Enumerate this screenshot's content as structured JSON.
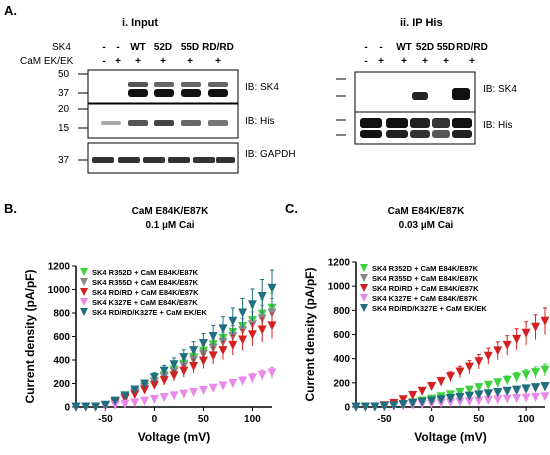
{
  "panel_a": {
    "label": "A.",
    "input": {
      "heading": "i.  Input",
      "row1_label": "SK4",
      "row2_label": "CaM EK/EK",
      "row1_values": [
        "-",
        "-",
        "WT",
        "52D",
        "55D",
        "RD/RD"
      ],
      "row2_values": [
        "-",
        "+",
        "+",
        "+",
        "+",
        "+"
      ],
      "blots": [
        {
          "ib": "IB: SK4",
          "markers": [
            "50",
            "37"
          ]
        },
        {
          "ib": "IB: His",
          "markers": [
            "20",
            "15"
          ]
        },
        {
          "ib": "IB: GAPDH",
          "markers": [
            "37"
          ]
        }
      ]
    },
    "ip": {
      "heading": "ii.  IP His",
      "row1_values": [
        "-",
        "-",
        "WT",
        "52D",
        "55D",
        "RD/RD"
      ],
      "row2_values": [
        "-",
        "+",
        "+",
        "+",
        "+",
        "+"
      ],
      "blots": [
        {
          "ib": "IB: SK4"
        },
        {
          "ib": "IB: His"
        }
      ]
    }
  },
  "chart_data": [
    {
      "type": "line",
      "panel": "B.",
      "title": "CaM E84K/E87K",
      "subtitle": "0.1 µM Cai",
      "xlabel": "Voltage (mV)",
      "ylabel": "Current density (pA/pF)",
      "xlim": [
        -80,
        120
      ],
      "ylim": [
        0,
        1200
      ],
      "xticks": [
        "-50",
        "0",
        "50",
        "100"
      ],
      "yticks": [
        "0",
        "200",
        "400",
        "600",
        "800",
        "1000",
        "1200"
      ],
      "legend_position": "top-left",
      "series": [
        {
          "name": "SK4 R352D + CaM E84K/E87K",
          "color": "#3fd23f",
          "marker": "triangle-down",
          "x": [
            -80,
            -70,
            -60,
            -50,
            -40,
            -30,
            -20,
            -10,
            0,
            10,
            20,
            30,
            40,
            50,
            60,
            70,
            80,
            90,
            100,
            110,
            120
          ],
          "y": [
            0,
            0,
            0,
            10,
            40,
            80,
            125,
            170,
            215,
            265,
            315,
            365,
            420,
            475,
            530,
            585,
            635,
            685,
            735,
            790,
            840
          ]
        },
        {
          "name": "SK4 R355D + CaM E84K/E87K",
          "color": "#8a8a8a",
          "marker": "triangle-down",
          "x": [
            -80,
            -70,
            -60,
            -50,
            -40,
            -30,
            -20,
            -10,
            0,
            10,
            20,
            30,
            40,
            50,
            60,
            70,
            80,
            90,
            100,
            110,
            120
          ],
          "y": [
            0,
            0,
            0,
            10,
            40,
            80,
            120,
            165,
            210,
            255,
            300,
            350,
            400,
            450,
            500,
            550,
            600,
            650,
            700,
            750,
            800
          ]
        },
        {
          "name": "SK4 RD/RD + CaM E84K/E87K",
          "color": "#d42020",
          "marker": "triangle-down",
          "x": [
            -80,
            -70,
            -60,
            -50,
            -40,
            -30,
            -20,
            -10,
            0,
            10,
            20,
            30,
            40,
            50,
            60,
            70,
            80,
            90,
            100,
            110,
            120
          ],
          "y": [
            0,
            0,
            0,
            10,
            35,
            70,
            105,
            145,
            185,
            225,
            265,
            305,
            345,
            390,
            435,
            480,
            525,
            570,
            615,
            655,
            690
          ]
        },
        {
          "name": "SK4 K327E + CaM E84K/E87K",
          "color": "#e88ae8",
          "marker": "triangle-down",
          "x": [
            -80,
            -70,
            -60,
            -50,
            -40,
            -30,
            -20,
            -10,
            0,
            10,
            20,
            30,
            40,
            50,
            60,
            70,
            80,
            90,
            100,
            110,
            120
          ],
          "y": [
            0,
            0,
            0,
            5,
            15,
            25,
            35,
            50,
            65,
            80,
            95,
            110,
            125,
            140,
            160,
            180,
            200,
            220,
            245,
            270,
            290
          ]
        },
        {
          "name": "SK4 RD/RD/K327E + CaM EK/EK",
          "color": "#1f6f80",
          "marker": "triangle-down",
          "x": [
            -80,
            -70,
            -60,
            -50,
            -40,
            -30,
            -20,
            -10,
            0,
            10,
            20,
            30,
            40,
            50,
            60,
            70,
            80,
            90,
            100,
            110,
            120
          ],
          "y": [
            0,
            0,
            0,
            15,
            50,
            95,
            145,
            195,
            250,
            305,
            360,
            420,
            480,
            540,
            600,
            665,
            730,
            800,
            870,
            940,
            1010
          ]
        }
      ]
    },
    {
      "type": "line",
      "panel": "C.",
      "title": "CaM E84K/E87K",
      "subtitle": "0.03 µM Cai",
      "xlabel": "Voltage (mV)",
      "ylabel": "Current density (pA/pF)",
      "xlim": [
        -80,
        120
      ],
      "ylim": [
        0,
        1200
      ],
      "xticks": [
        "-50",
        "0",
        "50",
        "100"
      ],
      "yticks": [
        "0",
        "200",
        "400",
        "600",
        "800",
        "1000",
        "1200"
      ],
      "legend_position": "top-left",
      "series": [
        {
          "name": "SK4 R352D + CaM E84K/E87K",
          "color": "#3fd23f",
          "marker": "triangle-down",
          "x": [
            -80,
            -70,
            -60,
            -50,
            -40,
            -30,
            -20,
            -10,
            0,
            10,
            20,
            30,
            40,
            50,
            60,
            70,
            80,
            90,
            100,
            110,
            120
          ],
          "y": [
            0,
            0,
            0,
            5,
            10,
            20,
            35,
            50,
            65,
            85,
            100,
            120,
            140,
            160,
            180,
            200,
            220,
            245,
            265,
            285,
            305
          ]
        },
        {
          "name": "SK4 R355D + CaM E84K/E87K",
          "color": "#8a8a8a",
          "marker": "triangle-down",
          "x": [
            -80,
            -70,
            -60,
            -50,
            -40,
            -30,
            -20,
            -10,
            0,
            10,
            20,
            30,
            40,
            50,
            60,
            70,
            80,
            90,
            100,
            110,
            120
          ],
          "y": [
            0,
            0,
            0,
            5,
            10,
            15,
            25,
            35,
            45,
            55,
            65,
            75,
            85,
            95,
            105,
            115,
            125,
            135,
            145,
            155,
            165
          ]
        },
        {
          "name": "SK4 RD/RD + CaM E84K/E87K",
          "color": "#d42020",
          "marker": "triangle-down",
          "x": [
            -80,
            -70,
            -60,
            -50,
            -40,
            -30,
            -20,
            -10,
            0,
            10,
            20,
            30,
            40,
            50,
            60,
            70,
            80,
            90,
            100,
            110,
            120
          ],
          "y": [
            0,
            0,
            0,
            10,
            30,
            60,
            95,
            130,
            170,
            210,
            250,
            290,
            330,
            375,
            420,
            465,
            510,
            560,
            610,
            660,
            710
          ]
        },
        {
          "name": "SK4 K327E + CaM E84K/E87K",
          "color": "#e88ae8",
          "marker": "triangle-down",
          "x": [
            -80,
            -70,
            -60,
            -50,
            -40,
            -30,
            -20,
            -10,
            0,
            10,
            20,
            30,
            40,
            50,
            60,
            70,
            80,
            90,
            100,
            110,
            120
          ],
          "y": [
            0,
            0,
            0,
            0,
            5,
            10,
            15,
            20,
            25,
            30,
            35,
            40,
            45,
            50,
            55,
            60,
            65,
            70,
            75,
            80,
            85
          ]
        },
        {
          "name": "SK4 RD/RD/K327E + CaM EK/EK",
          "color": "#1f6f80",
          "marker": "triangle-down",
          "x": [
            -80,
            -70,
            -60,
            -50,
            -40,
            -30,
            -20,
            -10,
            0,
            10,
            20,
            30,
            40,
            50,
            60,
            70,
            80,
            90,
            100,
            110,
            120
          ],
          "y": [
            0,
            0,
            0,
            5,
            10,
            20,
            30,
            40,
            50,
            60,
            70,
            80,
            90,
            100,
            110,
            120,
            130,
            140,
            150,
            160,
            170
          ]
        }
      ]
    }
  ]
}
